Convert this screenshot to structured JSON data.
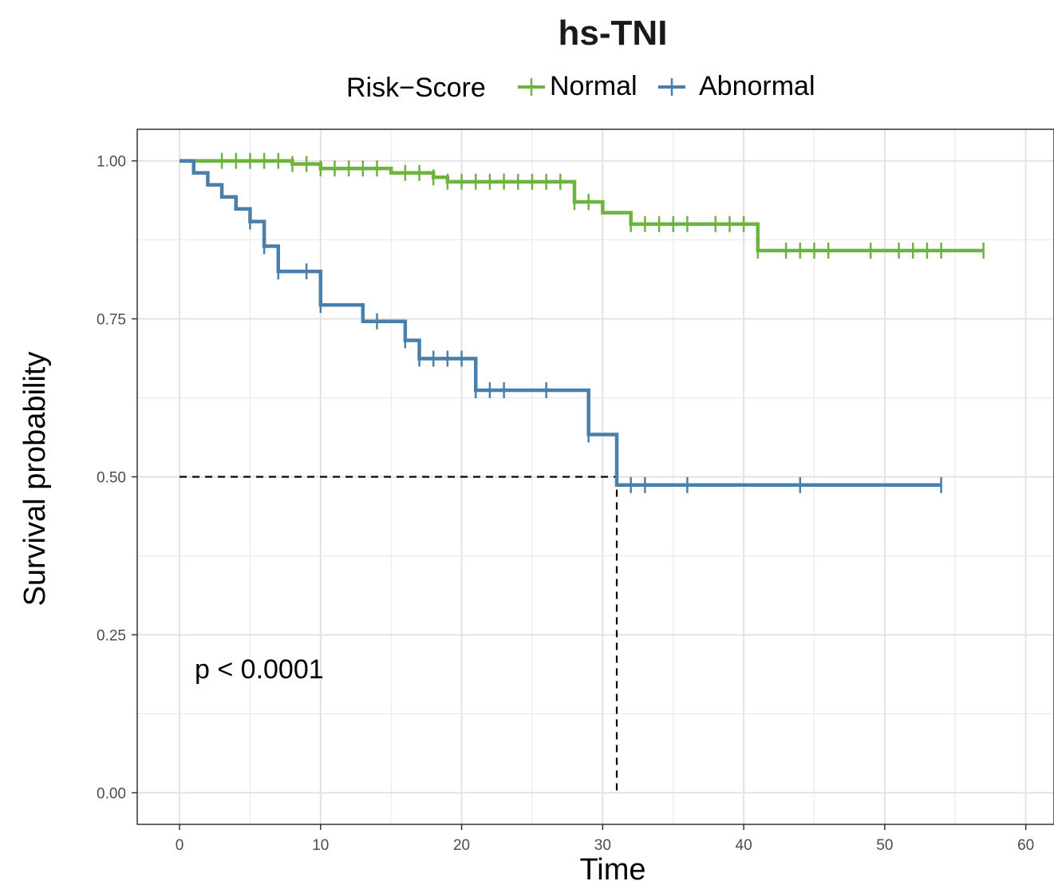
{
  "chart_data": {
    "type": "line",
    "subtype": "kaplan-meier",
    "title": "hs-TNI",
    "xlabel": "Time",
    "ylabel": "Survival probability",
    "xlim": [
      -3,
      62
    ],
    "ylim": [
      -0.05,
      1.05
    ],
    "x_ticks": [
      0,
      10,
      20,
      30,
      40,
      50,
      60
    ],
    "x_tick_labels": [
      "0",
      "10",
      "20",
      "30",
      "40",
      "50",
      "60"
    ],
    "y_ticks": [
      0,
      0.25,
      0.5,
      0.75,
      1.0
    ],
    "y_tick_labels": [
      "0.00",
      "0.25",
      "0.50",
      "0.75",
      "1.00"
    ],
    "grid": true,
    "legend": {
      "title": "Risk−Score",
      "position": "top"
    },
    "annotation": "p < 0.0001",
    "median_line": {
      "y": 0.5,
      "x": 31
    },
    "series": [
      {
        "name": "Normal",
        "color": "#6cb33f",
        "steps": [
          [
            0,
            1.0
          ],
          [
            8,
            0.995
          ],
          [
            10,
            0.988
          ],
          [
            15,
            0.981
          ],
          [
            18,
            0.974
          ],
          [
            19,
            0.967
          ],
          [
            28,
            0.935
          ],
          [
            30,
            0.918
          ],
          [
            32,
            0.9
          ],
          [
            41,
            0.858
          ],
          [
            57,
            0.858
          ]
        ],
        "censor": [
          3,
          4,
          5,
          6,
          7,
          8,
          9,
          10,
          11,
          12,
          13,
          14,
          16,
          17,
          18,
          19,
          20,
          21,
          22,
          23,
          24,
          25,
          26,
          27,
          28,
          29,
          32,
          33,
          34,
          35,
          36,
          38,
          39,
          40,
          41,
          43,
          44,
          45,
          46,
          49,
          51,
          52,
          53,
          54,
          57
        ]
      },
      {
        "name": "Abnormal",
        "color": "#4a7fab",
        "steps": [
          [
            0,
            1.0
          ],
          [
            1,
            0.981
          ],
          [
            2,
            0.962
          ],
          [
            3,
            0.943
          ],
          [
            4,
            0.924
          ],
          [
            5,
            0.904
          ],
          [
            6,
            0.865
          ],
          [
            7,
            0.825
          ],
          [
            10,
            0.772
          ],
          [
            13,
            0.746
          ],
          [
            16,
            0.716
          ],
          [
            17,
            0.687
          ],
          [
            21,
            0.637
          ],
          [
            29,
            0.567
          ],
          [
            31,
            0.487
          ],
          [
            54,
            0.487
          ]
        ],
        "censor": [
          5,
          6,
          7,
          9,
          10,
          14,
          16,
          17,
          18,
          19,
          20,
          21,
          22,
          23,
          26,
          29,
          32,
          33,
          36,
          44,
          54
        ]
      }
    ]
  }
}
